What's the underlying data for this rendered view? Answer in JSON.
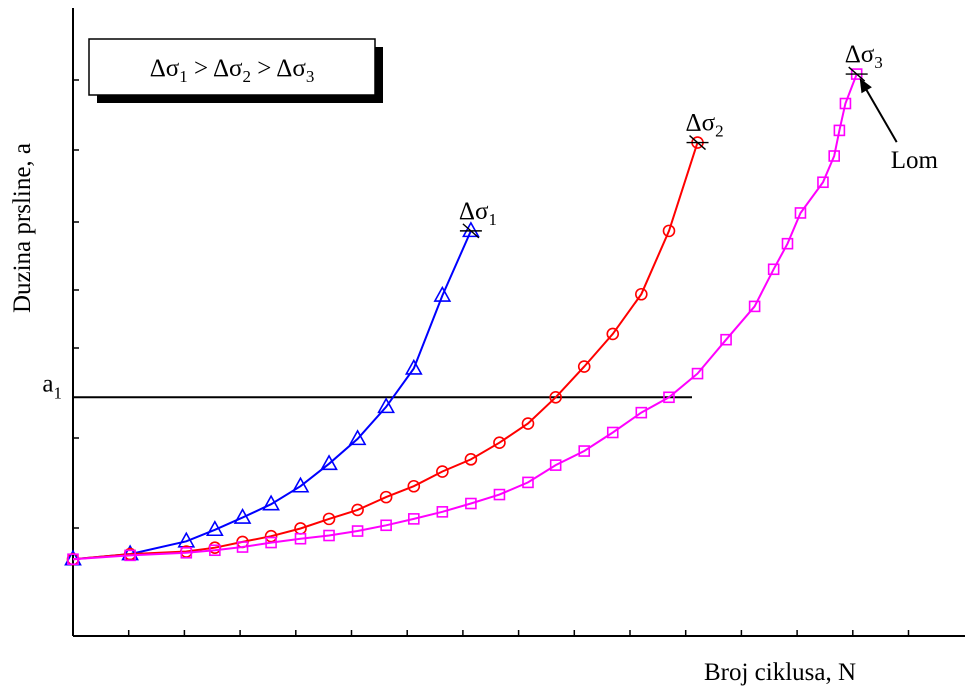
{
  "chart_data": {
    "type": "line",
    "title": "",
    "xlabel": "Broj ciklusa, N",
    "ylabel": "Duzina prsline, a",
    "xlim": [
      0,
      100
    ],
    "ylim": [
      0,
      100
    ],
    "legend_box": {
      "text_parts": [
        {
          "t": "Δσ"
        },
        {
          "t": "1",
          "sub": true
        },
        {
          "t": " > Δσ"
        },
        {
          "t": "2",
          "sub": true
        },
        {
          "t": " > Δσ"
        },
        {
          "t": "3",
          "sub": true
        }
      ],
      "position": "top-left"
    },
    "reference_line": {
      "label": "a",
      "label_sub": "1",
      "y": 37.3
    },
    "annotation": {
      "text": "Lom",
      "points_to_series": 2
    },
    "series": [
      {
        "name": "Δσ1",
        "name_main": "Δσ",
        "name_sub": "1",
        "color": "#0000ff",
        "marker": "triangle",
        "x": [
          0,
          6.6,
          13.1,
          16.4,
          19.6,
          22.9,
          26.3,
          29.6,
          32.9,
          36.2,
          39.4,
          42.7,
          46.0
        ],
        "y": [
          12.0,
          12.8,
          14.8,
          16.6,
          18.5,
          20.6,
          23.4,
          26.9,
          30.8,
          35.8,
          41.8,
          53.2,
          63.3
        ]
      },
      {
        "name": "Δσ2",
        "name_main": "Δσ",
        "name_sub": "2",
        "color": "#ff0000",
        "marker": "circle",
        "x": [
          0,
          6.6,
          13.1,
          16.4,
          19.6,
          22.9,
          26.3,
          29.6,
          32.9,
          36.2,
          39.4,
          42.7,
          46.0,
          49.3,
          52.6,
          55.8,
          59.1,
          62.4,
          65.7,
          68.9,
          72.2
        ],
        "y": [
          12.0,
          12.8,
          13.2,
          13.8,
          14.7,
          15.6,
          16.8,
          18.3,
          19.7,
          21.7,
          23.4,
          25.7,
          27.6,
          30.2,
          33.2,
          37.3,
          42.1,
          47.2,
          53.4,
          63.3,
          77.1
        ]
      },
      {
        "name": "Δσ3",
        "name_main": "Δσ",
        "name_sub": "3",
        "color": "#ff00ff",
        "marker": "square",
        "x": [
          0,
          6.6,
          13.1,
          16.4,
          19.6,
          22.9,
          26.3,
          29.6,
          32.9,
          36.2,
          39.4,
          42.7,
          46.0,
          49.3,
          52.6,
          55.8,
          59.1,
          62.4,
          65.7,
          68.9,
          72.2,
          75.5,
          78.8,
          81.0,
          82.6,
          84.1,
          86.7,
          88.0,
          88.6,
          89.3,
          90.6
        ],
        "y": [
          12.0,
          12.6,
          13.0,
          13.4,
          13.9,
          14.6,
          15.2,
          15.7,
          16.4,
          17.3,
          18.3,
          19.4,
          20.7,
          22.1,
          24.0,
          26.7,
          28.9,
          31.8,
          34.9,
          37.3,
          41.0,
          46.3,
          51.5,
          57.3,
          61.3,
          66.1,
          70.9,
          75.0,
          79.0,
          83.2,
          87.8
        ]
      }
    ]
  }
}
